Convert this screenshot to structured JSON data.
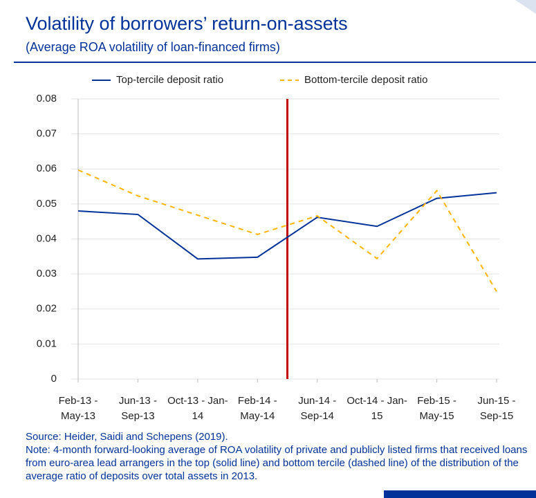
{
  "chart_data": {
    "type": "line",
    "title": "Volatility of borrowers’ return-on-assets",
    "subtitle": "(Average ROA volatility of loan-financed firms)",
    "categories": [
      "Feb-13 - May-13",
      "Jun-13 - Sep-13",
      "Oct-13 - Jan-14",
      "Feb-14 - May-14",
      "Jun-14 - Sep-14",
      "Oct-14 - Jan-15",
      "Feb-15 - May-15",
      "Jun-15 - Sep-15"
    ],
    "series": [
      {
        "name": "Top-tercile deposit ratio",
        "color": "#003299",
        "dash": false,
        "values": [
          0.048,
          0.047,
          0.0343,
          0.0348,
          0.0462,
          0.0436,
          0.0516,
          0.0532
        ]
      },
      {
        "name": "Bottom-tercile deposit ratio",
        "color": "#ffb400",
        "dash": true,
        "values": [
          0.0597,
          0.0523,
          0.0468,
          0.0413,
          0.0466,
          0.0344,
          0.0538,
          0.025
        ]
      }
    ],
    "ylim": [
      0,
      0.08
    ],
    "yticks": [
      0,
      0.01,
      0.02,
      0.03,
      0.04,
      0.05,
      0.06,
      0.07,
      0.08
    ],
    "grid": true,
    "marker_line": {
      "after_category": 3,
      "color": "#c00000"
    },
    "source": "Source: Heider, Saidi and Schepens (2019).",
    "note": "Note: 4-month forward-looking average of ROA volatility of private and publicly listed firms that received loans from euro-area lead arrangers in the top (solid line) and bottom tercile (dashed line) of the distribution of the average ratio of deposits over total assets in 2013."
  }
}
